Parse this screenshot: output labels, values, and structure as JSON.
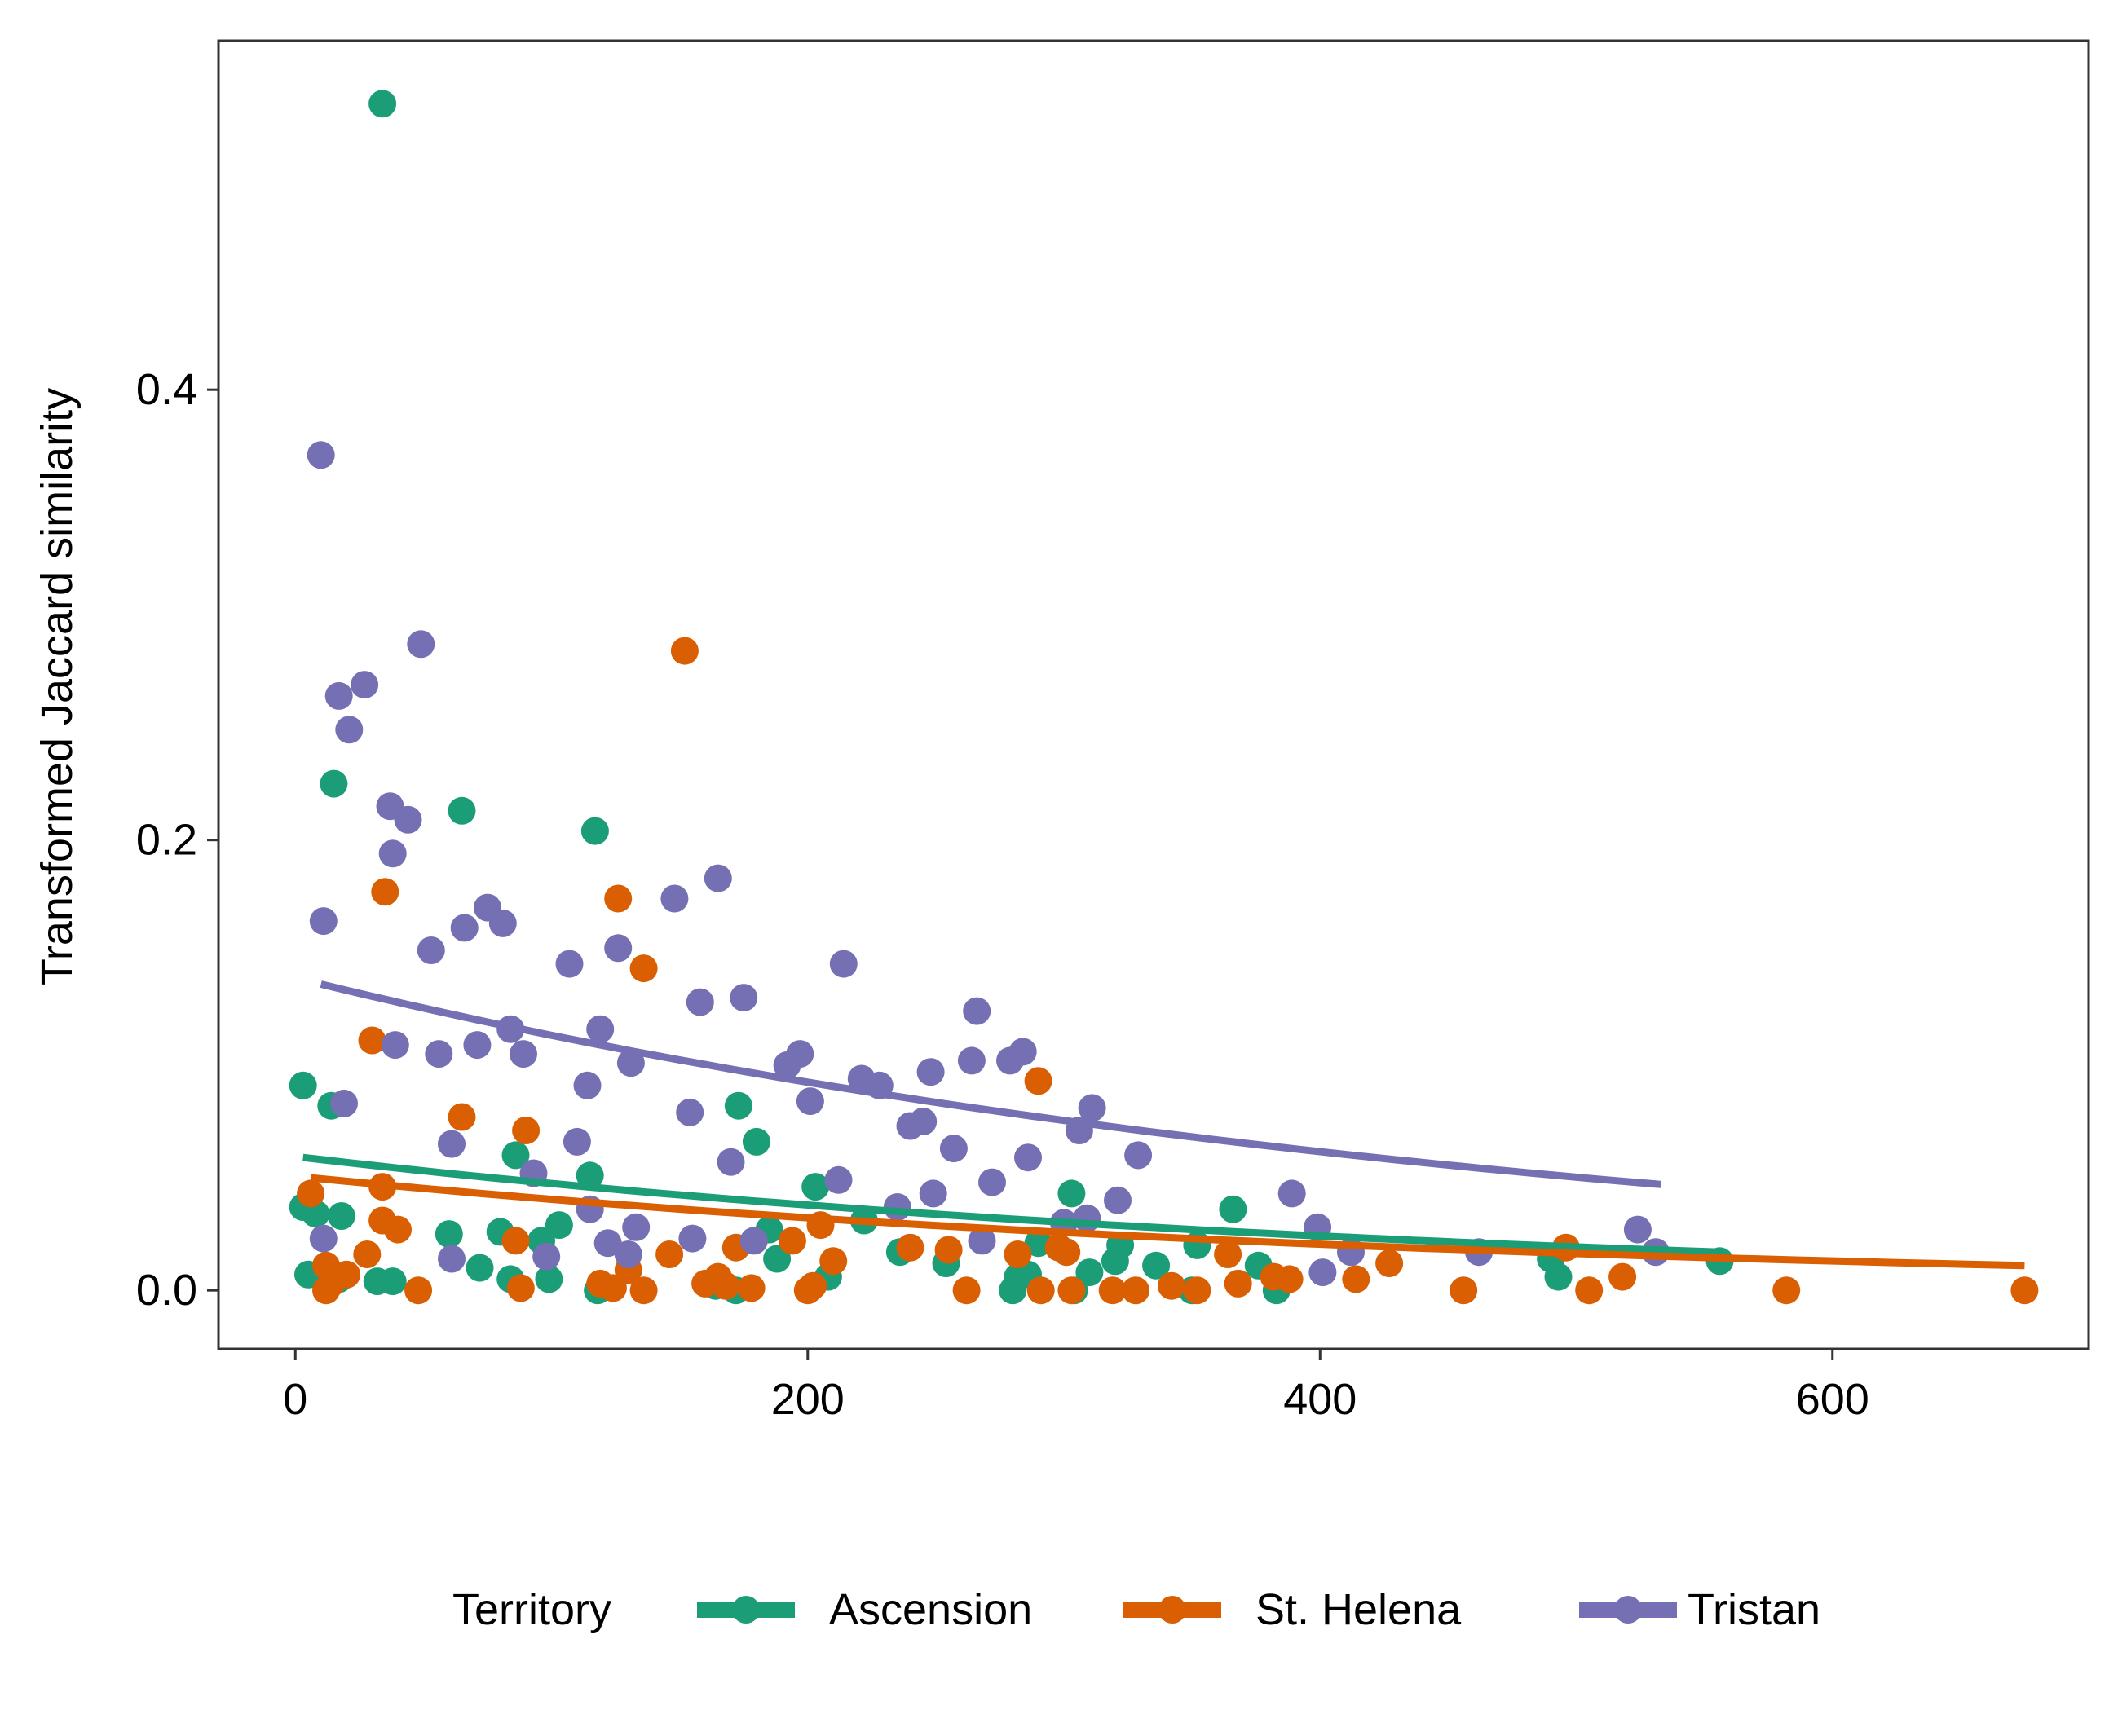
{
  "chart_data": {
    "type": "scatter",
    "title": "",
    "xlabel": "",
    "ylabel": "Transformed Jaccard similarity",
    "xlim": [
      -30,
      700
    ],
    "ylim": [
      -0.026,
      0.555
    ],
    "x_ticks": [
      0,
      200,
      400,
      600
    ],
    "x_tick_labels": [
      "0",
      "200",
      "400",
      "600"
    ],
    "y_ticks": [
      0.0,
      0.2,
      0.4
    ],
    "y_tick_labels": [
      "0.0",
      "0.2",
      "0.4"
    ],
    "grid": false,
    "legend_position": "bottom",
    "legend_title": "Territory",
    "series": [
      {
        "name": "Ascension",
        "color": "#1B9E77",
        "points": [
          [
            34,
            0.527
          ],
          [
            15,
            0.225
          ],
          [
            65,
            0.213
          ],
          [
            117,
            0.204
          ],
          [
            3,
            0.091
          ],
          [
            14,
            0.082
          ],
          [
            173,
            0.082
          ],
          [
            180,
            0.066
          ],
          [
            86,
            0.06
          ],
          [
            115,
            0.051
          ],
          [
            203,
            0.046
          ],
          [
            303,
            0.043
          ],
          [
            366,
            0.036
          ],
          [
            3,
            0.037
          ],
          [
            8,
            0.034
          ],
          [
            18,
            0.033
          ],
          [
            103,
            0.029
          ],
          [
            185,
            0.027
          ],
          [
            222,
            0.031
          ],
          [
            60,
            0.025
          ],
          [
            80,
            0.026
          ],
          [
            96,
            0.022
          ],
          [
            236,
            0.017
          ],
          [
            290,
            0.021
          ],
          [
            322,
            0.02
          ],
          [
            352,
            0.02
          ],
          [
            188,
            0.014
          ],
          [
            254,
            0.012
          ],
          [
            320,
            0.013
          ],
          [
            336,
            0.011
          ],
          [
            376,
            0.011
          ],
          [
            490,
            0.014
          ],
          [
            556,
            0.013
          ],
          [
            5,
            0.007
          ],
          [
            17,
            0.005
          ],
          [
            32,
            0.004
          ],
          [
            38,
            0.004
          ],
          [
            72,
            0.01
          ],
          [
            84,
            0.005
          ],
          [
            99,
            0.005
          ],
          [
            118,
            0.0
          ],
          [
            164,
            0.002
          ],
          [
            172,
            0.0
          ],
          [
            208,
            0.006
          ],
          [
            282,
            0.006
          ],
          [
            286,
            0.007
          ],
          [
            310,
            0.008
          ],
          [
            350,
            0.0
          ],
          [
            280,
            0.0
          ],
          [
            383,
            0.0
          ],
          [
            493,
            0.006
          ],
          [
            304,
            0.0
          ]
        ]
      },
      {
        "name": "St. Helena",
        "color": "#D95F02",
        "points": [
          [
            152,
            0.284
          ],
          [
            35,
            0.177
          ],
          [
            126,
            0.174
          ],
          [
            136,
            0.143
          ],
          [
            30,
            0.111
          ],
          [
            290,
            0.093
          ],
          [
            65,
            0.077
          ],
          [
            90,
            0.071
          ],
          [
            34,
            0.046
          ],
          [
            6,
            0.043
          ],
          [
            34,
            0.031
          ],
          [
            40,
            0.027
          ],
          [
            86,
            0.022
          ],
          [
            194,
            0.022
          ],
          [
            205,
            0.029
          ],
          [
            240,
            0.019
          ],
          [
            255,
            0.018
          ],
          [
            282,
            0.016
          ],
          [
            298,
            0.019
          ],
          [
            301,
            0.017
          ],
          [
            172,
            0.019
          ],
          [
            146,
            0.016
          ],
          [
            28,
            0.016
          ],
          [
            210,
            0.013
          ],
          [
            364,
            0.016
          ],
          [
            496,
            0.019
          ],
          [
            427,
            0.012
          ],
          [
            12,
            0.011
          ],
          [
            20,
            0.007
          ],
          [
            16,
            0.006
          ],
          [
            14,
            0.003
          ],
          [
            12,
            0.0
          ],
          [
            48,
            0.0
          ],
          [
            88,
            0.001
          ],
          [
            119,
            0.003
          ],
          [
            124,
            0.001
          ],
          [
            130,
            0.009
          ],
          [
            136,
            0.0
          ],
          [
            160,
            0.003
          ],
          [
            165,
            0.006
          ],
          [
            168,
            0.002
          ],
          [
            178,
            0.001
          ],
          [
            200,
            0.0
          ],
          [
            202,
            0.002
          ],
          [
            262,
            0.0
          ],
          [
            291,
            0.0
          ],
          [
            303,
            0.0
          ],
          [
            319,
            0.0
          ],
          [
            328,
            0.0
          ],
          [
            342,
            0.002
          ],
          [
            352,
            0.0
          ],
          [
            368,
            0.003
          ],
          [
            382,
            0.006
          ],
          [
            388,
            0.005
          ],
          [
            414,
            0.005
          ],
          [
            456,
            0.0
          ],
          [
            505,
            0.0
          ],
          [
            518,
            0.006
          ],
          [
            582,
            0.0
          ],
          [
            675,
            0.0
          ]
        ]
      },
      {
        "name": "Tristan",
        "color": "#7570B3",
        "points": [
          [
            10,
            0.371
          ],
          [
            49,
            0.287
          ],
          [
            27,
            0.269
          ],
          [
            17,
            0.264
          ],
          [
            21,
            0.249
          ],
          [
            37,
            0.215
          ],
          [
            44,
            0.209
          ],
          [
            38,
            0.194
          ],
          [
            165,
            0.183
          ],
          [
            148,
            0.174
          ],
          [
            75,
            0.17
          ],
          [
            11,
            0.164
          ],
          [
            81,
            0.163
          ],
          [
            66,
            0.161
          ],
          [
            53,
            0.151
          ],
          [
            126,
            0.152
          ],
          [
            107,
            0.145
          ],
          [
            214,
            0.145
          ],
          [
            158,
            0.128
          ],
          [
            175,
            0.13
          ],
          [
            266,
            0.124
          ],
          [
            119,
            0.116
          ],
          [
            84,
            0.116
          ],
          [
            71,
            0.109
          ],
          [
            39,
            0.109
          ],
          [
            56,
            0.105
          ],
          [
            89,
            0.105
          ],
          [
            197,
            0.105
          ],
          [
            279,
            0.102
          ],
          [
            284,
            0.106
          ],
          [
            264,
            0.102
          ],
          [
            131,
            0.101
          ],
          [
            248,
            0.097
          ],
          [
            192,
            0.1
          ],
          [
            221,
            0.094
          ],
          [
            228,
            0.091
          ],
          [
            114,
            0.091
          ],
          [
            19,
            0.083
          ],
          [
            154,
            0.079
          ],
          [
            201,
            0.084
          ],
          [
            311,
            0.081
          ],
          [
            240,
            0.073
          ],
          [
            245,
            0.075
          ],
          [
            61,
            0.065
          ],
          [
            110,
            0.066
          ],
          [
            306,
            0.071
          ],
          [
            257,
            0.063
          ],
          [
            286,
            0.059
          ],
          [
            329,
            0.06
          ],
          [
            170,
            0.057
          ],
          [
            93,
            0.052
          ],
          [
            212,
            0.049
          ],
          [
            272,
            0.048
          ],
          [
            321,
            0.04
          ],
          [
            389,
            0.043
          ],
          [
            115,
            0.036
          ],
          [
            235,
            0.037
          ],
          [
            249,
            0.043
          ],
          [
            300,
            0.03
          ],
          [
            309,
            0.032
          ],
          [
            399,
            0.028
          ],
          [
            133,
            0.028
          ],
          [
            524,
            0.027
          ],
          [
            11,
            0.023
          ],
          [
            122,
            0.021
          ],
          [
            179,
            0.022
          ],
          [
            268,
            0.022
          ],
          [
            155,
            0.023
          ],
          [
            412,
            0.017
          ],
          [
            462,
            0.017
          ],
          [
            531,
            0.017
          ],
          [
            130,
            0.016
          ],
          [
            61,
            0.014
          ],
          [
            98,
            0.015
          ],
          [
            401,
            0.008
          ]
        ]
      }
    ],
    "trend_lines": [
      {
        "name": "Ascension",
        "color": "#1B9E77",
        "x": [
          3,
          556
        ],
        "y_start": 0.059,
        "y_end": 0.017
      },
      {
        "name": "St. Helena",
        "color": "#D95F02",
        "x": [
          6,
          675
        ],
        "y_start": 0.05,
        "y_end": 0.011
      },
      {
        "name": "Tristan",
        "color": "#7570B3",
        "x": [
          10,
          533
        ],
        "y_start": 0.136,
        "y_end": 0.047
      }
    ]
  }
}
